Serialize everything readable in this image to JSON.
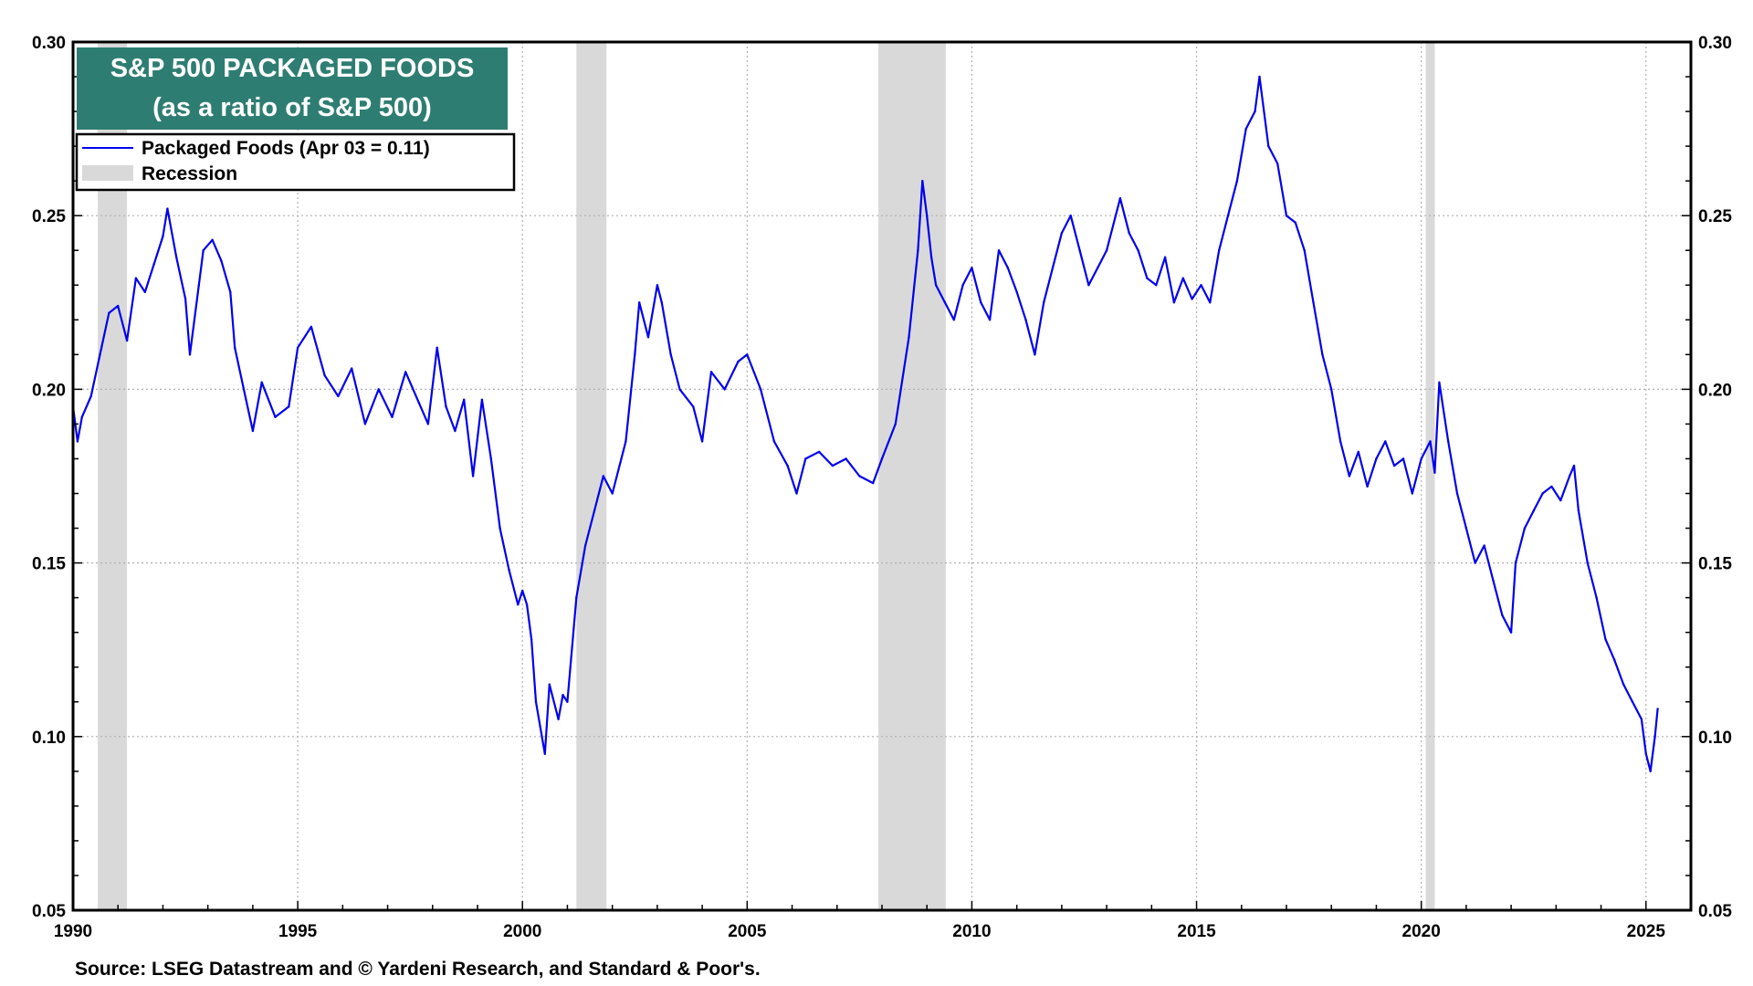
{
  "chart_data": {
    "type": "line",
    "title": "S&P 500 PACKAGED FOODS",
    "subtitle": "(as a ratio of S&P 500)",
    "xlabel": "",
    "ylabel": "",
    "xlim": [
      1990,
      2026
    ],
    "ylim": [
      0.05,
      0.3
    ],
    "x_ticks": [
      1990,
      1995,
      2000,
      2005,
      2010,
      2015,
      2020,
      2025
    ],
    "x_tick_labels": [
      "1990",
      "1995",
      "2000",
      "2005",
      "2010",
      "2015",
      "2020",
      "2025"
    ],
    "y_ticks": [
      0.05,
      0.1,
      0.15,
      0.2,
      0.25,
      0.3
    ],
    "y_tick_labels": [
      "0.05",
      "0.10",
      "0.15",
      "0.20",
      "0.25",
      "0.30"
    ],
    "grid": true,
    "legend_position": "top-left",
    "legend": [
      {
        "label": "Packaged Foods (Apr 03 = 0.11)",
        "kind": "line",
        "color": "#0000ee"
      },
      {
        "label": "Recession",
        "kind": "fill",
        "color": "#d9d9d9"
      }
    ],
    "recessions": [
      {
        "start": 1990.55,
        "end": 1991.2
      },
      {
        "start": 2001.2,
        "end": 2001.87
      },
      {
        "start": 2007.92,
        "end": 2009.42
      },
      {
        "start": 2020.1,
        "end": 2020.3
      }
    ],
    "series": [
      {
        "name": "Packaged Foods",
        "color": "#0000ee",
        "x": [
          1990.0,
          1990.1,
          1990.2,
          1990.4,
          1990.6,
          1990.8,
          1991.0,
          1991.2,
          1991.4,
          1991.6,
          1991.8,
          1992.0,
          1992.1,
          1992.3,
          1992.5,
          1992.6,
          1992.8,
          1992.9,
          1993.1,
          1993.3,
          1993.5,
          1993.6,
          1993.8,
          1994.0,
          1994.2,
          1994.5,
          1994.8,
          1995.0,
          1995.3,
          1995.6,
          1995.9,
          1996.2,
          1996.5,
          1996.8,
          1997.1,
          1997.4,
          1997.7,
          1997.9,
          1998.1,
          1998.3,
          1998.5,
          1998.7,
          1998.9,
          1999.1,
          1999.3,
          1999.5,
          1999.7,
          1999.9,
          2000.0,
          2000.1,
          2000.2,
          2000.3,
          2000.5,
          2000.6,
          2000.8,
          2000.9,
          2001.0,
          2001.2,
          2001.4,
          2001.6,
          2001.8,
          2002.0,
          2002.3,
          2002.5,
          2002.6,
          2002.8,
          2003.0,
          2003.1,
          2003.3,
          2003.5,
          2003.8,
          2004.0,
          2004.2,
          2004.5,
          2004.8,
          2005.0,
          2005.3,
          2005.6,
          2005.9,
          2006.1,
          2006.3,
          2006.6,
          2006.9,
          2007.2,
          2007.5,
          2007.8,
          2008.0,
          2008.3,
          2008.6,
          2008.8,
          2008.9,
          2009.0,
          2009.1,
          2009.2,
          2009.4,
          2009.6,
          2009.8,
          2010.0,
          2010.2,
          2010.4,
          2010.6,
          2010.8,
          2011.0,
          2011.2,
          2011.4,
          2011.6,
          2011.8,
          2012.0,
          2012.2,
          2012.4,
          2012.6,
          2012.8,
          2013.0,
          2013.3,
          2013.5,
          2013.7,
          2013.9,
          2014.1,
          2014.3,
          2014.5,
          2014.7,
          2014.9,
          2015.1,
          2015.3,
          2015.5,
          2015.7,
          2015.9,
          2016.1,
          2016.3,
          2016.4,
          2016.6,
          2016.8,
          2017.0,
          2017.2,
          2017.4,
          2017.6,
          2017.8,
          2018.0,
          2018.2,
          2018.4,
          2018.6,
          2018.8,
          2019.0,
          2019.2,
          2019.4,
          2019.6,
          2019.8,
          2020.0,
          2020.2,
          2020.3,
          2020.4,
          2020.6,
          2020.8,
          2021.0,
          2021.2,
          2021.4,
          2021.6,
          2021.8,
          2022.0,
          2022.1,
          2022.3,
          2022.5,
          2022.7,
          2022.9,
          2023.1,
          2023.3,
          2023.4,
          2023.5,
          2023.7,
          2023.9,
          2024.1,
          2024.3,
          2024.5,
          2024.7,
          2024.9,
          2025.0,
          2025.1,
          2025.2,
          2025.26
        ],
        "values": [
          0.195,
          0.185,
          0.192,
          0.198,
          0.21,
          0.222,
          0.224,
          0.214,
          0.232,
          0.228,
          0.236,
          0.244,
          0.252,
          0.238,
          0.226,
          0.21,
          0.23,
          0.24,
          0.243,
          0.237,
          0.228,
          0.212,
          0.2,
          0.188,
          0.202,
          0.192,
          0.195,
          0.212,
          0.218,
          0.204,
          0.198,
          0.206,
          0.19,
          0.2,
          0.192,
          0.205,
          0.196,
          0.19,
          0.212,
          0.195,
          0.188,
          0.197,
          0.175,
          0.197,
          0.18,
          0.16,
          0.148,
          0.138,
          0.142,
          0.138,
          0.128,
          0.11,
          0.095,
          0.115,
          0.105,
          0.112,
          0.11,
          0.14,
          0.155,
          0.165,
          0.175,
          0.17,
          0.185,
          0.21,
          0.225,
          0.215,
          0.23,
          0.225,
          0.21,
          0.2,
          0.195,
          0.185,
          0.205,
          0.2,
          0.208,
          0.21,
          0.2,
          0.185,
          0.178,
          0.17,
          0.18,
          0.182,
          0.178,
          0.18,
          0.175,
          0.173,
          0.18,
          0.19,
          0.215,
          0.24,
          0.26,
          0.25,
          0.238,
          0.23,
          0.225,
          0.22,
          0.23,
          0.235,
          0.225,
          0.22,
          0.24,
          0.235,
          0.228,
          0.22,
          0.21,
          0.225,
          0.235,
          0.245,
          0.25,
          0.24,
          0.23,
          0.235,
          0.24,
          0.255,
          0.245,
          0.24,
          0.232,
          0.23,
          0.238,
          0.225,
          0.232,
          0.226,
          0.23,
          0.225,
          0.24,
          0.25,
          0.26,
          0.275,
          0.28,
          0.29,
          0.27,
          0.265,
          0.25,
          0.248,
          0.24,
          0.225,
          0.21,
          0.2,
          0.185,
          0.175,
          0.182,
          0.172,
          0.18,
          0.185,
          0.178,
          0.18,
          0.17,
          0.18,
          0.185,
          0.176,
          0.202,
          0.185,
          0.17,
          0.16,
          0.15,
          0.155,
          0.145,
          0.135,
          0.13,
          0.15,
          0.16,
          0.165,
          0.17,
          0.172,
          0.168,
          0.175,
          0.178,
          0.165,
          0.15,
          0.14,
          0.128,
          0.122,
          0.115,
          0.11,
          0.105,
          0.095,
          0.09,
          0.1,
          0.108
        ]
      }
    ]
  },
  "source": "Source: LSEG Datastream and © Yardeni Research, and Standard & Poor's."
}
